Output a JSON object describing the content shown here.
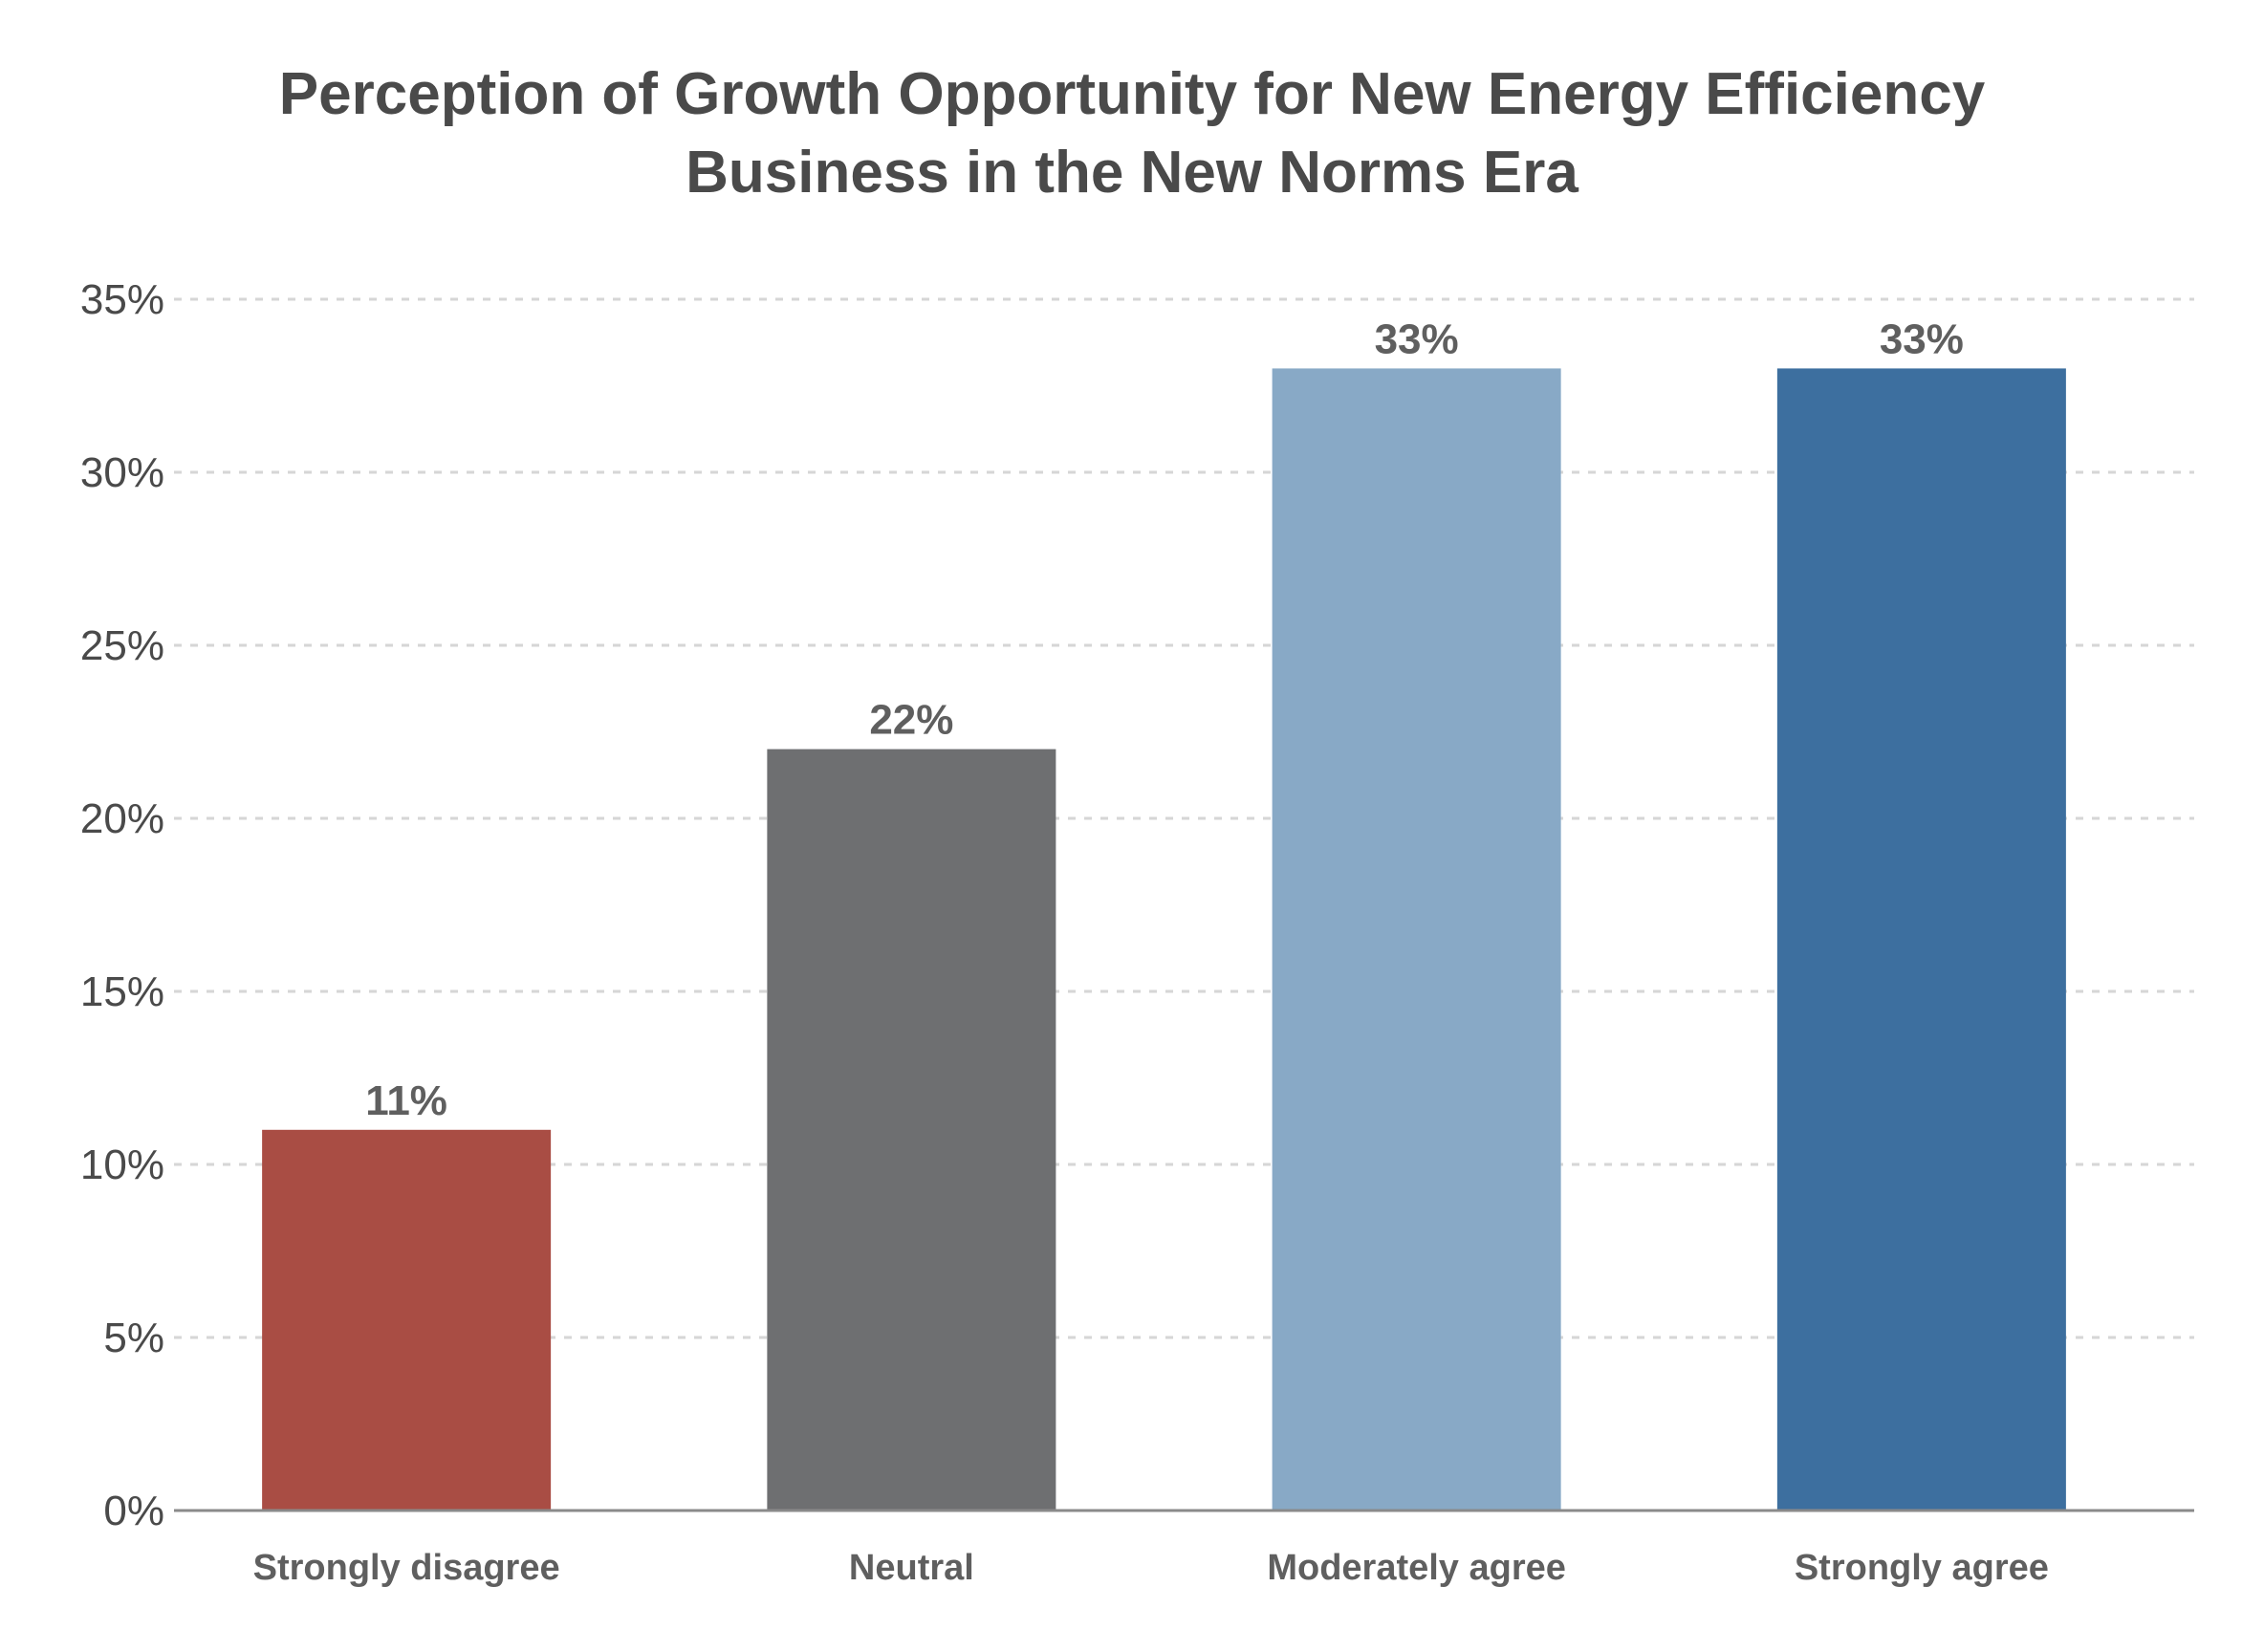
{
  "chart_data": {
    "type": "bar",
    "title": "Perception of Growth Opportunity for New Energy Efficiency Business in the New Norms Era",
    "title_lines": [
      "Perception of Growth Opportunity for New Energy Efficiency",
      "Business in the New Norms Era"
    ],
    "categories": [
      "Strongly disagree",
      "Neutral",
      "Moderately agree",
      "Strongly agree"
    ],
    "values": [
      11,
      22,
      33,
      33
    ],
    "data_labels": [
      "11%",
      "22%",
      "33%",
      "33%"
    ],
    "colors": [
      "#a94d44",
      "#6e6f71",
      "#88a9c6",
      "#3d6f9f"
    ],
    "xlabel": "",
    "ylabel": "",
    "ylim": [
      0,
      35
    ],
    "yticks": [
      0,
      5,
      10,
      15,
      20,
      25,
      30,
      35
    ],
    "ytick_labels": [
      "0%",
      "5%",
      "10%",
      "15%",
      "20%",
      "25%",
      "30%",
      "35%"
    ],
    "grid": true,
    "legend": "none"
  }
}
